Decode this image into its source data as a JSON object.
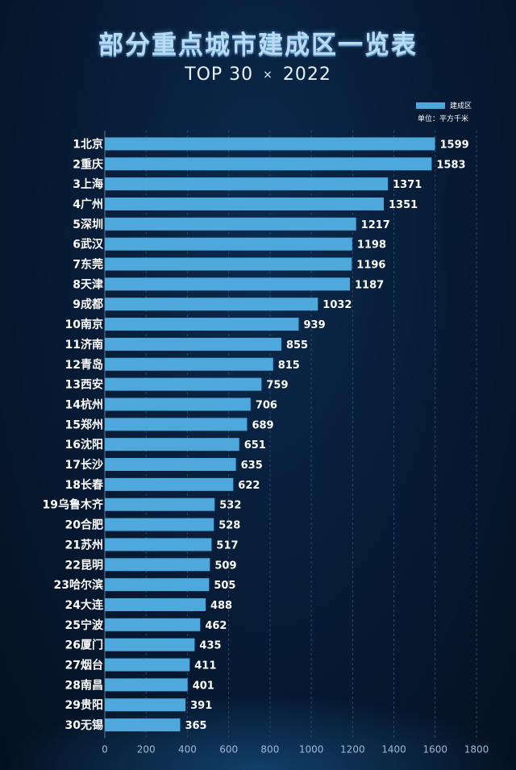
{
  "title": "部分重点城市建成区一览表",
  "subtitle": {
    "left": "TOP 30",
    "mid": "×",
    "right": "2022"
  },
  "legend": {
    "label": "建成区",
    "unit": "单位：平方千米"
  },
  "colors": {
    "bar": "#4fa8dc",
    "grid": "#2a4a6e",
    "label": "#ffffff",
    "title": "#b9dcf3"
  },
  "chart_data": {
    "type": "bar",
    "orientation": "horizontal",
    "title": "部分重点城市建成区一览表",
    "categories": [
      "1北京",
      "2重庆",
      "3上海",
      "4广州",
      "5深圳",
      "6武汉",
      "7东莞",
      "8天津",
      "9成都",
      "10南京",
      "11济南",
      "12青岛",
      "13西安",
      "14杭州",
      "15郑州",
      "16沈阳",
      "17长沙",
      "18长春",
      "19乌鲁木齐",
      "20合肥",
      "21苏州",
      "22昆明",
      "23哈尔滨",
      "24大连",
      "25宁波",
      "26厦门",
      "27烟台",
      "28南昌",
      "29贵阳",
      "30无锡"
    ],
    "series": [
      {
        "name": "建成区",
        "values": [
          1599,
          1583,
          1371,
          1351,
          1217,
          1198,
          1196,
          1187,
          1032,
          939,
          855,
          815,
          759,
          706,
          689,
          651,
          635,
          622,
          532,
          528,
          517,
          509,
          505,
          488,
          462,
          435,
          411,
          401,
          391,
          365
        ]
      }
    ],
    "xlim": [
      0,
      1800
    ],
    "xticks": [
      0,
      200,
      400,
      600,
      800,
      1000,
      1200,
      1400,
      1600,
      1800
    ],
    "grid": true,
    "legend_position": "top-right"
  }
}
